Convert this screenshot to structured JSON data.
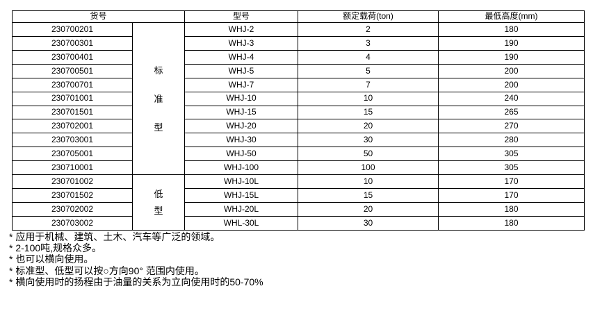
{
  "table": {
    "headers": {
      "item_no": "货号",
      "model": "型号",
      "load": "额定载荷(ton)",
      "height": "最低高度(mm)"
    },
    "groups": [
      {
        "type_name": "标准型",
        "type_chars": [
          "标",
          "准",
          "型"
        ],
        "rows": [
          [
            "230700201",
            "WHJ-2",
            "2",
            "180"
          ],
          [
            "230700301",
            "WHJ-3",
            "3",
            "190"
          ],
          [
            "230700401",
            "WHJ-4",
            "4",
            "190"
          ],
          [
            "230700501",
            "WHJ-5",
            "5",
            "200"
          ],
          [
            "230700701",
            "WHJ-7",
            "7",
            "200"
          ],
          [
            "230701001",
            "WHJ-10",
            "10",
            "240"
          ],
          [
            "230701501",
            "WHJ-15",
            "15",
            "265"
          ],
          [
            "230702001",
            "WHJ-20",
            "20",
            "270"
          ],
          [
            "230703001",
            "WHJ-30",
            "30",
            "280"
          ],
          [
            "230705001",
            "WHJ-50",
            "50",
            "305"
          ],
          [
            "230710001",
            "WHJ-100",
            "100",
            "305"
          ]
        ]
      },
      {
        "type_name": "低型",
        "type_chars": [
          "低",
          "型"
        ],
        "rows": [
          [
            "230701002",
            "WHJ-10L",
            "10",
            "170"
          ],
          [
            "230701502",
            "WHJ-15L",
            "15",
            "170"
          ],
          [
            "230702002",
            "WHJ-20L",
            "20",
            "180"
          ],
          [
            "230703002",
            "WHL-30L",
            "30",
            "180"
          ]
        ]
      }
    ]
  },
  "notes": [
    "* 应用于机械、建筑、土木、汽车等广泛的领域。",
    "* 2-100吨,规格众多。",
    "* 也可以横向使用。",
    "* 标准型、低型可以按○方向90° 范围内使用。",
    "* 横向使用时的扬程由于油量的关系为立向使用时的50-70%"
  ],
  "colors": {
    "background": "#ffffff",
    "border": "#000000",
    "text": "#000000"
  }
}
